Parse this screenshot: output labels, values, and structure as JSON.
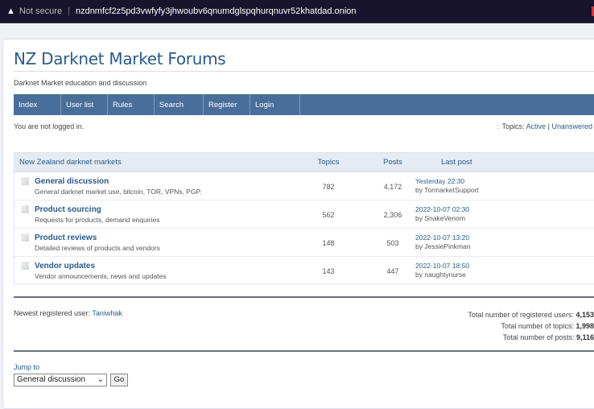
{
  "browser": {
    "security": "Not secure",
    "url": "nzdnmfcf2z5pd3vwfyfy3jhwoubv6qnumdglspqhurqnuvr52khatdad.onion"
  },
  "site": {
    "title": "NZ Darknet Market Forums",
    "subtitle": "Darknet Market education and discussion"
  },
  "nav": [
    "Index",
    "User list",
    "Rules",
    "Search",
    "Register",
    "Login"
  ],
  "status": {
    "login": "You are not logged in.",
    "topics_label": "Topics:",
    "active": "Active",
    "sep": "|",
    "unanswered": "Unanswered"
  },
  "table": {
    "headers": {
      "category": "New Zealand darknet markets",
      "topics": "Topics",
      "posts": "Posts",
      "last_post": "Last post"
    },
    "rows": [
      {
        "name": "General discussion",
        "desc": "General darknet market use, bitcoin, TOR, VPNs, PGP.",
        "topics": "782",
        "posts": "4,172",
        "date": "Yesterday 22:30",
        "by": "by TormarketSupport"
      },
      {
        "name": "Product sourcing",
        "desc": "Requests for products, demand enquiries",
        "topics": "562",
        "posts": "2,306",
        "date": "2022-10-07 02:30",
        "by": "by SnakeVenom"
      },
      {
        "name": "Product reviews",
        "desc": "Detailed reviews of products and vendors",
        "topics": "148",
        "posts": "503",
        "date": "2022-10-07 13:20",
        "by": "by JessiePinkman"
      },
      {
        "name": "Vendor updates",
        "desc": "Vendor announcements, news and updates",
        "topics": "143",
        "posts": "447",
        "date": "2022-10-07 18:50",
        "by": "by naughtynurse"
      }
    ]
  },
  "footer": {
    "newest_label": "Newest registered user:",
    "newest_user": "Taniwhak",
    "stats": [
      {
        "label": "Total number of registered users:",
        "value": "4,153"
      },
      {
        "label": "Total number of topics:",
        "value": "1,998"
      },
      {
        "label": "Total number of posts:",
        "value": "9,116"
      }
    ],
    "jump_label": "Jump to",
    "jump_selected": "General discussion",
    "go": "Go"
  }
}
